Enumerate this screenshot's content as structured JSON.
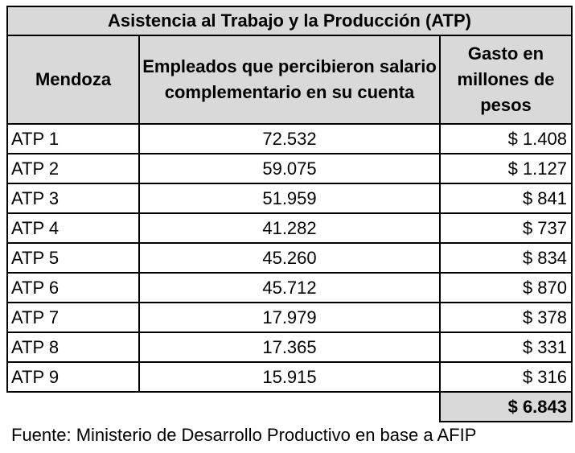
{
  "table": {
    "title": "Asistencia al Trabajo y la Producción (ATP)",
    "headers": [
      "Mendoza",
      "Empleados que percibieron salario complementario en su cuenta",
      "Gasto en millones de pesos"
    ],
    "rows": [
      {
        "label": "ATP 1",
        "empleados": "72.532",
        "gasto": "$ 1.408"
      },
      {
        "label": "ATP 2",
        "empleados": "59.075",
        "gasto": "$ 1.127"
      },
      {
        "label": "ATP 3",
        "empleados": "51.959",
        "gasto": "$ 841"
      },
      {
        "label": "ATP 4",
        "empleados": "41.282",
        "gasto": "$ 737"
      },
      {
        "label": "ATP 5",
        "empleados": "45.260",
        "gasto": "$ 834"
      },
      {
        "label": "ATP 6",
        "empleados": "45.712",
        "gasto": "$ 870"
      },
      {
        "label": "ATP 7",
        "empleados": "17.979",
        "gasto": "$ 378"
      },
      {
        "label": "ATP 8",
        "empleados": "17.365",
        "gasto": "$ 331"
      },
      {
        "label": "ATP 9",
        "empleados": "15.915",
        "gasto": "$ 316"
      }
    ],
    "total": "$ 6.843"
  },
  "footnote": "Fuente: Ministerio de Desarrollo Productivo en base a AFIP",
  "colors": {
    "header_bg": "#d9d9d9",
    "border": "#000000"
  }
}
